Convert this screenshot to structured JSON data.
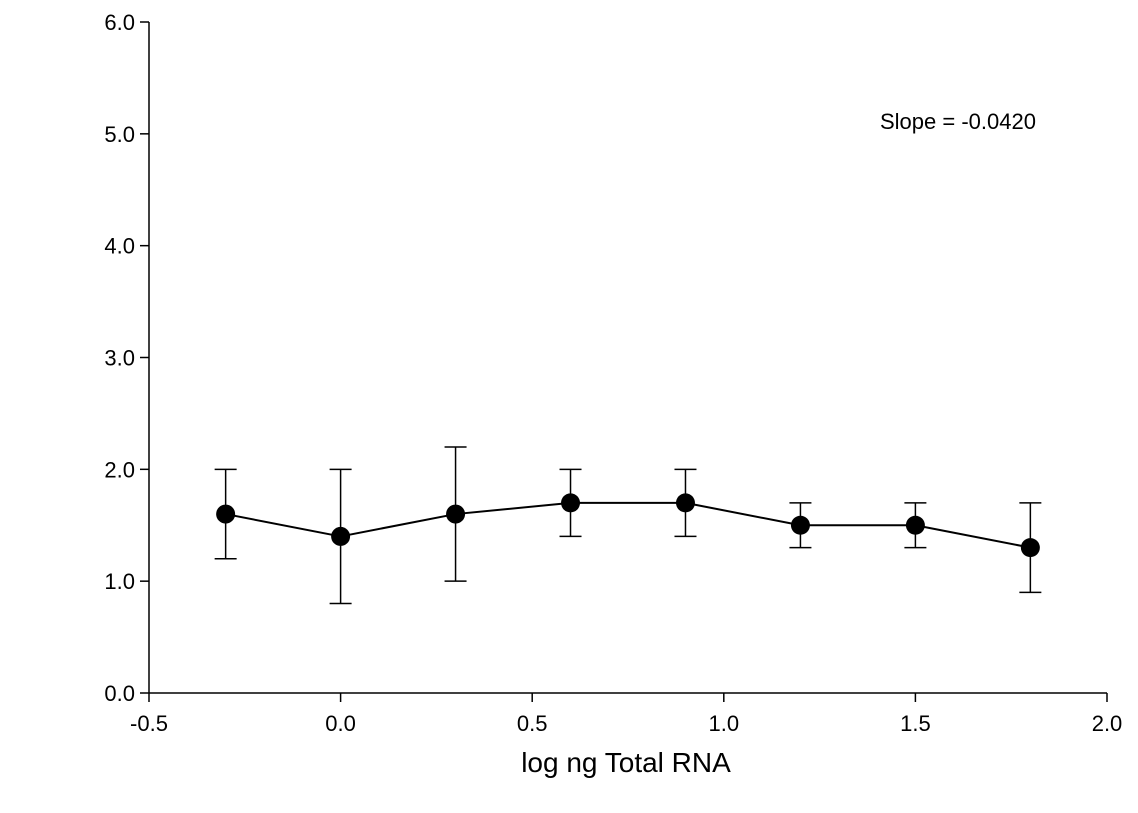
{
  "chart_data": {
    "type": "line",
    "x": [
      -0.3,
      0.0,
      0.3,
      0.6,
      0.9,
      1.2,
      1.5,
      1.8
    ],
    "series": [
      {
        "values": [
          1.6,
          1.4,
          1.6,
          1.7,
          1.7,
          1.5,
          1.5,
          1.3
        ],
        "error_low": [
          1.2,
          0.8,
          1.0,
          1.4,
          1.4,
          1.3,
          1.3,
          0.9
        ],
        "error_high": [
          2.0,
          2.0,
          2.2,
          2.0,
          2.0,
          1.7,
          1.7,
          1.7
        ],
        "marker": "filled-circle",
        "color": "#000000"
      }
    ],
    "xlabel": "log ng Total RNA",
    "ylabel": "",
    "xlim": [
      -0.5,
      2.0
    ],
    "ylim": [
      0.0,
      6.0
    ],
    "xticks": [
      "-0.5",
      "0.0",
      "0.5",
      "1.0",
      "1.5",
      "2.0"
    ],
    "yticks": [
      "0.0",
      "1.0",
      "2.0",
      "3.0",
      "4.0",
      "5.0",
      "6.0"
    ],
    "annotation": "Slope = -0.0420",
    "grid": false,
    "legend": "none"
  }
}
